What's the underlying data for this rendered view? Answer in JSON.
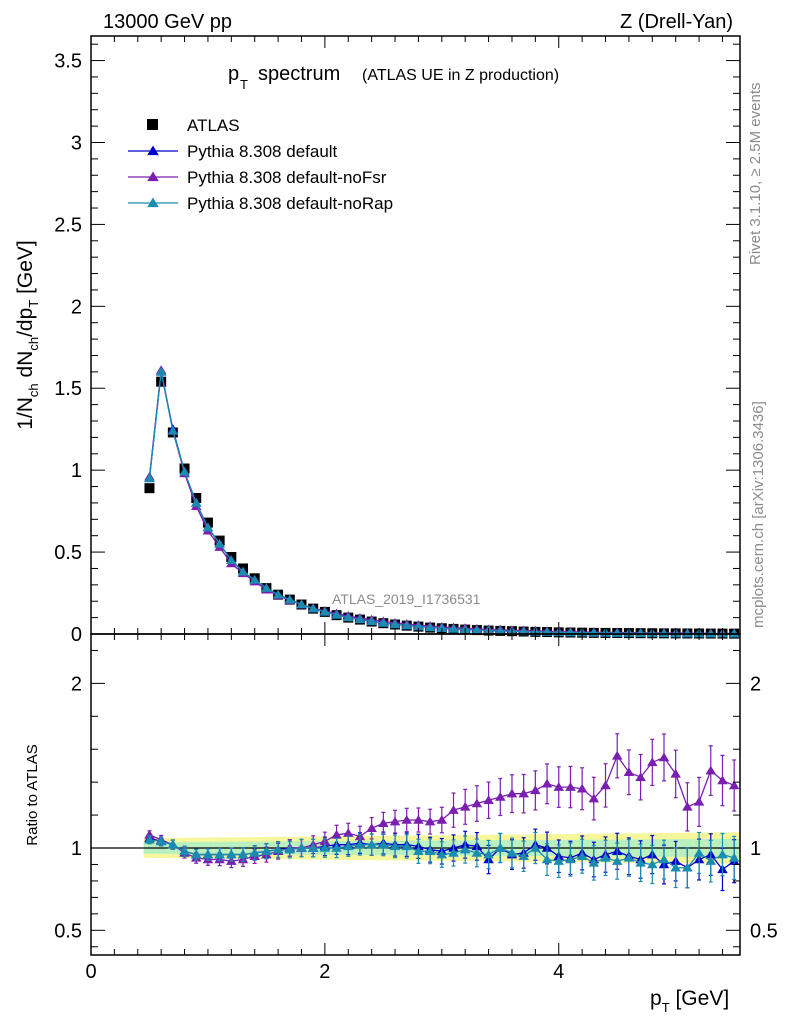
{
  "header": {
    "left": "13000 GeV pp",
    "right": "Z (Drell-Yan)"
  },
  "title": {
    "main": "spectrum",
    "sub": "(ATLAS UE in Z production)",
    "p": "p",
    "p_sub": "T"
  },
  "side_labels": {
    "rivet": "Rivet 3.1.10, ≥ 2.5M events",
    "mcplots": "mcplots.cern.ch [arXiv:1306.3436]"
  },
  "watermark": "ATLAS_2019_I1736531",
  "axes": {
    "ylabel_main": "1/N_ch dN_ch/dp_T [GeV]",
    "ylabel_ratio": "Ratio to ATLAS",
    "xlabel": "p_T [GeV]"
  },
  "legend": [
    {
      "label": "ATLAS",
      "marker": "square",
      "color": "#000000"
    },
    {
      "label": "Pythia 8.308 default",
      "marker": "triangle",
      "color": "#0000cc"
    },
    {
      "label": "Pythia 8.308 default-noFsr",
      "marker": "triangle",
      "color": "#7a1fb0"
    },
    {
      "label": "Pythia 8.308 default-noRap",
      "marker": "triangle",
      "color": "#1a8cb0"
    }
  ],
  "chart_data": {
    "type": "scatter",
    "x": [
      0.5,
      0.6,
      0.7,
      0.8,
      0.9,
      1.0,
      1.1,
      1.2,
      1.3,
      1.4,
      1.5,
      1.6,
      1.7,
      1.8,
      1.9,
      2.0,
      2.1,
      2.2,
      2.3,
      2.4,
      2.5,
      2.6,
      2.7,
      2.8,
      2.9,
      3.0,
      3.1,
      3.2,
      3.3,
      3.4,
      3.5,
      3.6,
      3.7,
      3.8,
      3.9,
      4.0,
      4.1,
      4.2,
      4.3,
      4.4,
      4.5,
      4.6,
      4.7,
      4.8,
      4.9,
      5.0,
      5.1,
      5.2,
      5.3,
      5.4,
      5.5
    ],
    "main": {
      "ylim": [
        0,
        3.65
      ],
      "yticks": [
        "0",
        "0.5",
        "1",
        "1.5",
        "2",
        "2.5",
        "3",
        "3.5"
      ],
      "series": [
        {
          "name": "ATLAS",
          "values": [
            0.89,
            1.54,
            1.23,
            1.01,
            0.83,
            0.68,
            0.57,
            0.47,
            0.4,
            0.34,
            0.28,
            0.24,
            0.21,
            0.18,
            0.155,
            0.135,
            0.115,
            0.1,
            0.088,
            0.076,
            0.066,
            0.058,
            0.051,
            0.045,
            0.039,
            0.035,
            0.031,
            0.027,
            0.024,
            0.021,
            0.019,
            0.017,
            0.015,
            0.013,
            0.012,
            0.01,
            0.009,
            0.008,
            0.007,
            0.0065,
            0.006,
            0.0055,
            0.005,
            0.0045,
            0.004,
            0.0036,
            0.0033,
            0.003,
            0.0027,
            0.0025,
            0.0023
          ]
        },
        {
          "name": "Pythia 8.308 default",
          "values": [
            0.95,
            1.6,
            1.25,
            0.99,
            0.8,
            0.65,
            0.55,
            0.45,
            0.38,
            0.33,
            0.28,
            0.24,
            0.21,
            0.18,
            0.155,
            0.135,
            0.117,
            0.102,
            0.089,
            0.077,
            0.067,
            0.059,
            0.052,
            0.046,
            0.04,
            0.035,
            0.031,
            0.027,
            0.024,
            0.021,
            0.019,
            0.017,
            0.015,
            0.013,
            0.012,
            0.01,
            0.009,
            0.008,
            0.007,
            0.006,
            0.0055,
            0.005,
            0.0045,
            0.004,
            0.0036,
            0.0032,
            0.0029,
            0.0027,
            0.0024,
            0.0022,
            0.002
          ]
        },
        {
          "name": "Pythia 8.308 default-noFsr",
          "values": [
            0.96,
            1.61,
            1.24,
            0.98,
            0.78,
            0.63,
            0.53,
            0.43,
            0.37,
            0.32,
            0.27,
            0.235,
            0.205,
            0.18,
            0.158,
            0.14,
            0.125,
            0.11,
            0.098,
            0.087,
            0.077,
            0.068,
            0.061,
            0.054,
            0.048,
            0.043,
            0.039,
            0.035,
            0.031,
            0.028,
            0.026,
            0.023,
            0.021,
            0.019,
            0.017,
            0.015,
            0.014,
            0.012,
            0.011,
            0.0095,
            0.009,
            0.0085,
            0.0075,
            0.007,
            0.0065,
            0.0058,
            0.005,
            0.0045,
            0.004,
            0.0036,
            0.0033
          ]
        },
        {
          "name": "Pythia 8.308 default-noRap",
          "values": [
            0.95,
            1.6,
            1.24,
            0.99,
            0.8,
            0.65,
            0.55,
            0.45,
            0.38,
            0.33,
            0.28,
            0.24,
            0.21,
            0.18,
            0.155,
            0.135,
            0.116,
            0.101,
            0.089,
            0.077,
            0.067,
            0.059,
            0.052,
            0.046,
            0.04,
            0.035,
            0.031,
            0.027,
            0.024,
            0.021,
            0.019,
            0.017,
            0.015,
            0.013,
            0.012,
            0.01,
            0.009,
            0.008,
            0.007,
            0.006,
            0.0055,
            0.005,
            0.0045,
            0.004,
            0.0036,
            0.0032,
            0.0029,
            0.0027,
            0.0024,
            0.0022,
            0.002
          ]
        }
      ]
    },
    "ratio": {
      "ylim": [
        0.35,
        2.3
      ],
      "yticks": [
        "0.5",
        "1",
        "2"
      ],
      "band": {
        "inner": 0.035,
        "outer": 0.06
      },
      "series": [
        {
          "name": "Pythia 8.308 default",
          "values": [
            1.06,
            1.04,
            1.02,
            0.98,
            0.96,
            0.96,
            0.96,
            0.96,
            0.96,
            0.97,
            0.98,
            0.99,
            1.0,
            1.0,
            1.0,
            1.01,
            1.02,
            1.02,
            1.03,
            1.02,
            1.03,
            1.02,
            1.02,
            1.01,
            0.99,
            0.98,
            1.0,
            1.02,
            1.01,
            0.93,
            1.0,
            0.96,
            0.97,
            1.02,
            1.0,
            0.95,
            0.94,
            0.97,
            0.93,
            0.96,
            0.98,
            0.95,
            0.93,
            0.96,
            0.9,
            0.92,
            0.88,
            0.93,
            0.96,
            0.87,
            0.92
          ]
        },
        {
          "name": "Pythia 8.308 default-noFsr",
          "values": [
            1.08,
            1.05,
            1.02,
            0.97,
            0.94,
            0.93,
            0.93,
            0.92,
            0.93,
            0.95,
            0.96,
            0.98,
            1.0,
            1.0,
            1.02,
            1.04,
            1.08,
            1.09,
            1.07,
            1.12,
            1.15,
            1.16,
            1.17,
            1.17,
            1.16,
            1.17,
            1.23,
            1.25,
            1.27,
            1.29,
            1.31,
            1.33,
            1.33,
            1.35,
            1.39,
            1.37,
            1.37,
            1.36,
            1.3,
            1.38,
            1.56,
            1.46,
            1.43,
            1.52,
            1.55,
            1.45,
            1.25,
            1.28,
            1.47,
            1.41,
            1.38
          ]
        },
        {
          "name": "Pythia 8.308 default-noRap",
          "values": [
            1.05,
            1.04,
            1.02,
            0.98,
            0.96,
            0.96,
            0.96,
            0.96,
            0.96,
            0.97,
            0.98,
            0.99,
            0.99,
            1.0,
            1.0,
            1.0,
            1.0,
            1.01,
            1.02,
            1.02,
            1.02,
            1.01,
            1.01,
            0.98,
            0.98,
            0.96,
            0.97,
            0.99,
            0.97,
            0.96,
            1.0,
            0.97,
            0.95,
            1.0,
            0.93,
            0.92,
            0.93,
            0.95,
            0.91,
            0.94,
            0.92,
            0.94,
            0.91,
            0.9,
            0.93,
            0.88,
            0.88,
            0.97,
            0.92,
            0.96,
            0.94
          ]
        }
      ]
    },
    "xlim": [
      0,
      5.55
    ],
    "xticks": [
      "0",
      "2",
      "4"
    ]
  }
}
